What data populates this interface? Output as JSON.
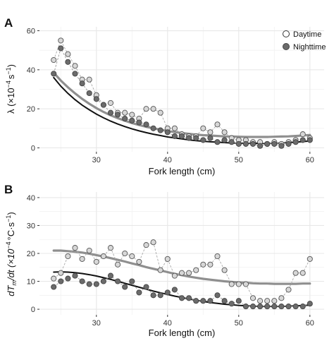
{
  "colors": {
    "day_point_fill": "#d7d7d7",
    "day_point_stroke": "#555555",
    "night_point_fill": "#6b6b6b",
    "night_point_stroke": "#444444",
    "day_fit": "#8f8f8f",
    "night_fit": "#111111",
    "day_dashed": "#a9a9a9",
    "night_dashed": "#9a9a9a",
    "panel_bg": "#ffffff",
    "grid": "#e8e8e8"
  },
  "chart_data": [
    {
      "type": "scatter",
      "panel": "A",
      "xlabel": "Fork length (cm)",
      "ylabel_main": "λ (×10",
      "ylabel_exp": "−4",
      "ylabel_unit": "s",
      "ylabel_unit_exp": "−1",
      "ylabel_close": ")",
      "xlim": [
        22,
        62
      ],
      "ylim": [
        -2,
        62
      ],
      "xticks": [
        "30",
        "40",
        "50",
        "60"
      ],
      "yticks": [
        "0",
        "20",
        "40",
        "60"
      ],
      "grid": true,
      "legend_position": "top-right",
      "legend": [
        "Daytime",
        "Nighttime"
      ],
      "series": [
        {
          "name": "Daytime",
          "x": [
            24,
            25,
            26,
            27,
            28,
            29,
            30,
            31,
            32,
            33,
            34,
            35,
            36,
            37,
            38,
            39,
            40,
            41,
            42,
            43,
            44,
            45,
            46,
            47,
            48,
            49,
            50,
            51,
            52,
            53,
            54,
            55,
            56,
            57,
            58,
            59,
            60
          ],
          "y": [
            45,
            55,
            48,
            42,
            35,
            35,
            27,
            22,
            23,
            18,
            18,
            17,
            15,
            20,
            20,
            18,
            10,
            10,
            7,
            6,
            6,
            10,
            8,
            12,
            8,
            5,
            4,
            4,
            3,
            3,
            2,
            3,
            2,
            3,
            4,
            7,
            5
          ],
          "fit": [
            38.5,
            34.5,
            31.0,
            27.9,
            25.1,
            22.6,
            20.4,
            18.4,
            16.7,
            15.2,
            13.9,
            12.7,
            11.7,
            10.8,
            10.0,
            9.3,
            8.6,
            8.1,
            7.6,
            7.2,
            6.8,
            6.5,
            6.3,
            6.1,
            5.9,
            5.8,
            5.7,
            5.6,
            5.6,
            5.6,
            5.6,
            5.7,
            5.8,
            5.9,
            6.1,
            6.3,
            6.6
          ]
        },
        {
          "name": "Nighttime",
          "x": [
            24,
            25,
            26,
            27,
            28,
            29,
            30,
            31,
            32,
            33,
            34,
            35,
            36,
            37,
            38,
            39,
            40,
            41,
            42,
            43,
            44,
            45,
            46,
            47,
            48,
            49,
            50,
            51,
            52,
            53,
            54,
            55,
            56,
            57,
            58,
            59,
            60
          ],
          "y": [
            38,
            51,
            44,
            38,
            33,
            28,
            25,
            22,
            18,
            17,
            15,
            14,
            13,
            12,
            10,
            9,
            8,
            6,
            6,
            5,
            5,
            4,
            5,
            3,
            4,
            3,
            2,
            2,
            2,
            1,
            2,
            2,
            1,
            2,
            3,
            4,
            4
          ],
          "fit": [
            36.0,
            31.6,
            27.9,
            24.7,
            21.9,
            19.5,
            17.3,
            15.4,
            13.7,
            12.2,
            10.9,
            9.7,
            8.7,
            7.8,
            7.0,
            6.3,
            5.6,
            5.1,
            4.6,
            4.1,
            3.7,
            3.4,
            3.1,
            2.9,
            2.7,
            2.5,
            2.4,
            2.3,
            2.3,
            2.3,
            2.3,
            2.4,
            2.5,
            2.7,
            2.9,
            3.2,
            3.5
          ]
        }
      ]
    },
    {
      "type": "scatter",
      "panel": "B",
      "xlabel": "Fork length (cm)",
      "ylabel_main": "dT",
      "ylabel_sub": "m",
      "ylabel_mid": "/dt (×10",
      "ylabel_exp": "−4",
      "ylabel_unit": "°C·s",
      "ylabel_unit_exp": "−1",
      "ylabel_close": ")",
      "xlim": [
        22,
        62
      ],
      "ylim": [
        -2,
        42
      ],
      "xticks": [
        "30",
        "40",
        "50",
        "60"
      ],
      "yticks": [
        "0",
        "10",
        "20",
        "30",
        "40"
      ],
      "grid": true,
      "series": [
        {
          "name": "Daytime",
          "x": [
            24,
            25,
            26,
            27,
            28,
            29,
            30,
            31,
            32,
            33,
            34,
            35,
            36,
            37,
            38,
            39,
            40,
            41,
            42,
            43,
            44,
            45,
            46,
            47,
            48,
            49,
            50,
            51,
            52,
            53,
            54,
            55,
            56,
            57,
            58,
            59,
            60
          ],
          "y": [
            11,
            13,
            19,
            22,
            18,
            21,
            17,
            19,
            22,
            16,
            20,
            19,
            17,
            23,
            24,
            14,
            18,
            12,
            13,
            13,
            14,
            16,
            16,
            19,
            14,
            9,
            9,
            9,
            4,
            3,
            3,
            3,
            4,
            7,
            13,
            13,
            18
          ],
          "fit": [
            21.0,
            21.0,
            20.8,
            20.6,
            20.3,
            19.9,
            19.4,
            18.9,
            18.3,
            17.7,
            17.1,
            16.4,
            15.8,
            15.1,
            14.5,
            13.9,
            13.3,
            12.7,
            12.2,
            11.7,
            11.3,
            10.9,
            10.6,
            10.3,
            10.0,
            9.8,
            9.6,
            9.5,
            9.3,
            9.2,
            9.2,
            9.1,
            9.1,
            9.1,
            9.1,
            9.2,
            9.2
          ]
        },
        {
          "name": "Nighttime",
          "x": [
            24,
            25,
            26,
            27,
            28,
            29,
            30,
            31,
            32,
            33,
            34,
            35,
            36,
            37,
            38,
            39,
            40,
            41,
            42,
            43,
            44,
            45,
            46,
            47,
            48,
            49,
            50,
            51,
            52,
            53,
            54,
            55,
            56,
            57,
            58,
            59,
            60
          ],
          "y": [
            8,
            10,
            11,
            12,
            10,
            9,
            9,
            10,
            12,
            10,
            8,
            10,
            6,
            8,
            5,
            5,
            6,
            7,
            4,
            4,
            3,
            3,
            3,
            5,
            3,
            2,
            3,
            1,
            1,
            1,
            1,
            1,
            1,
            1,
            1,
            1,
            2
          ],
          "fit": [
            13.3,
            13.4,
            13.3,
            13.1,
            12.8,
            12.4,
            11.9,
            11.3,
            10.7,
            10.0,
            9.3,
            8.6,
            7.9,
            7.2,
            6.5,
            5.9,
            5.3,
            4.7,
            4.2,
            3.7,
            3.2,
            2.8,
            2.4,
            2.1,
            1.8,
            1.6,
            1.4,
            1.2,
            1.1,
            1.0,
            1.0,
            1.0,
            1.0,
            1.1,
            1.2,
            1.3,
            1.5
          ]
        }
      ]
    }
  ]
}
